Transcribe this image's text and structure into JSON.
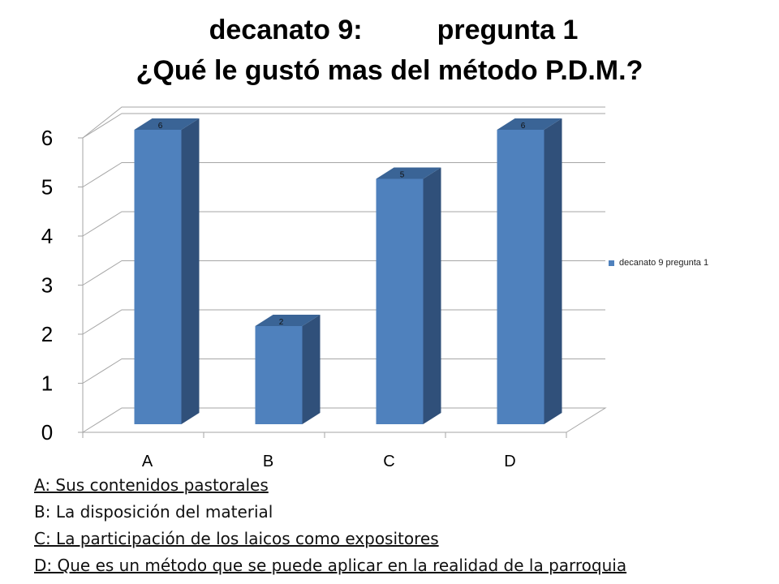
{
  "title": {
    "line1_left": "decanato 9:",
    "line1_right": "pregunta 1",
    "line2": "¿Qué le gustó mas del método P.D.M.?"
  },
  "chart_data": {
    "type": "bar",
    "style": "3d-column",
    "categories": [
      "A",
      "B",
      "C",
      "D"
    ],
    "series": [
      {
        "name": "decanato 9 pregunta 1",
        "values": [
          6,
          2,
          5,
          6
        ],
        "color": "#4f81bd"
      }
    ],
    "data_labels": [
      "6",
      "2",
      "5",
      "6"
    ],
    "yticks": [
      "0",
      "1",
      "2",
      "3",
      "4",
      "5",
      "6"
    ],
    "ylim": [
      0,
      6
    ],
    "grid": true,
    "legend_position": "right"
  },
  "notes": [
    {
      "text": "A: Sus contenidos pastorales",
      "underline": true
    },
    {
      "text": "B: La disposición del material",
      "underline": false
    },
    {
      "text": "C: La participación de los laicos como expositores",
      "underline": true
    },
    {
      "text": "D: Que es un método que se puede aplicar en la realidad de la parroquia",
      "underline": true
    }
  ],
  "colors": {
    "bar_front": "#4f81bd",
    "bar_side": "#30507a",
    "bar_top": "#3a6496",
    "grid": "#a6a6a6"
  }
}
